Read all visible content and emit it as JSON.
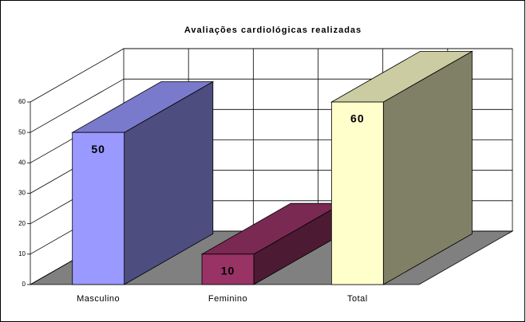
{
  "chart_data": {
    "type": "bar3d",
    "title": "Avaliações cardiológicas realizadas",
    "categories": [
      "Masculino",
      "Feminino",
      "Total"
    ],
    "values": [
      50,
      10,
      60
    ],
    "colors": [
      "#9999ff",
      "#993366",
      "#ffffcc"
    ],
    "ylim": [
      0,
      60
    ],
    "yticks": [
      0,
      10,
      20,
      30,
      40,
      50,
      60
    ],
    "grid": true
  }
}
